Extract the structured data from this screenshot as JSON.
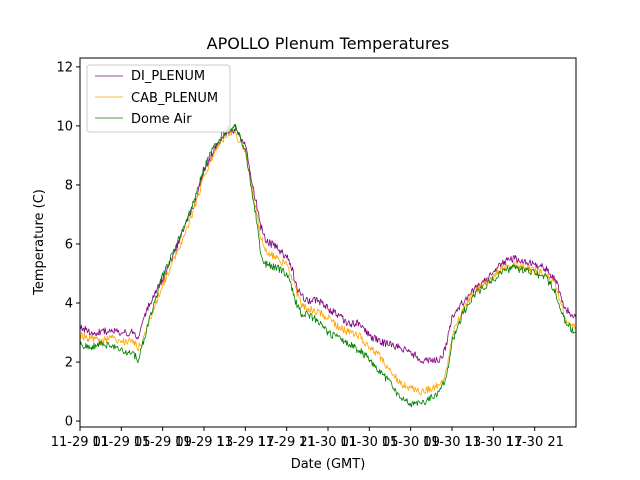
{
  "chart_data": {
    "type": "line",
    "title": "APOLLO Plenum Temperatures",
    "xlabel": "Date (GMT)",
    "ylabel": "Temperature (C)",
    "xlim": [
      0,
      48
    ],
    "ylim": [
      -0.2,
      12.3
    ],
    "grid": false,
    "legend_position": "top-left",
    "x_ticks": [
      {
        "x": 0,
        "label": "11-29 01"
      },
      {
        "x": 4,
        "label": "11-29 05"
      },
      {
        "x": 8,
        "label": "11-29 09"
      },
      {
        "x": 12,
        "label": "11-29 13"
      },
      {
        "x": 16,
        "label": "11-29 17"
      },
      {
        "x": 20,
        "label": "11-29 21"
      },
      {
        "x": 24,
        "label": "11-30 01"
      },
      {
        "x": 28,
        "label": "11-30 05"
      },
      {
        "x": 32,
        "label": "11-30 09"
      },
      {
        "x": 36,
        "label": "11-30 13"
      },
      {
        "x": 40,
        "label": "11-30 17"
      },
      {
        "x": 44,
        "label": "11-30 21"
      }
    ],
    "x_ticks_visible": [
      "11-29 01",
      "11-29 05",
      "11-29 09",
      "11-29 13",
      "11-29 17",
      "11-29 21",
      "11-30 01",
      "11-30 05",
      "11-30 09",
      "11-30 13",
      "11-30 17",
      "11-30 21"
    ],
    "y_ticks": [
      0,
      2,
      4,
      6,
      8,
      10,
      12
    ],
    "series": [
      {
        "name": "DI_PLENUM",
        "color": "#800080",
        "x": [
          0,
          1,
          2,
          3,
          4,
          5,
          5.6,
          6,
          7,
          8,
          9,
          10,
          11,
          12,
          13,
          14,
          15,
          16,
          17,
          17.5,
          18,
          19,
          19.5,
          20,
          20.5,
          21,
          21.5,
          22,
          23,
          24,
          25,
          26,
          27,
          28,
          29,
          30,
          31,
          32,
          33,
          34,
          35,
          35.5,
          36,
          37,
          38,
          39,
          40,
          41,
          42,
          43,
          44,
          45,
          46,
          47,
          48
        ],
        "y": [
          3.2,
          3.0,
          3.0,
          3.1,
          3.0,
          3.0,
          2.8,
          3.4,
          4.2,
          4.8,
          5.6,
          6.5,
          7.3,
          8.5,
          9.2,
          9.7,
          9.9,
          9.3,
          7.5,
          6.6,
          6.1,
          5.9,
          5.7,
          5.6,
          5.2,
          4.5,
          4.2,
          4.1,
          4.1,
          3.8,
          3.6,
          3.3,
          3.3,
          2.9,
          2.7,
          2.6,
          2.5,
          2.3,
          2.1,
          2.0,
          2.1,
          2.7,
          3.5,
          4.0,
          4.4,
          4.7,
          5.0,
          5.4,
          5.5,
          5.4,
          5.3,
          5.2,
          4.8,
          3.8,
          3.5
        ]
      },
      {
        "name": "CAB_PLENUM",
        "color": "#ffa500",
        "x": [
          0,
          1,
          2,
          3,
          4,
          5,
          5.6,
          6,
          7,
          8,
          9,
          10,
          11,
          12,
          13,
          14,
          15,
          16,
          17,
          17.5,
          18,
          19,
          19.5,
          20,
          20.5,
          21,
          21.5,
          22,
          23,
          24,
          25,
          26,
          27,
          28,
          29,
          30,
          31,
          32,
          33,
          34,
          35,
          35.5,
          36,
          37,
          38,
          39,
          40,
          41,
          42,
          43,
          44,
          45,
          46,
          47,
          48
        ],
        "y": [
          2.9,
          2.8,
          2.7,
          2.8,
          2.7,
          2.7,
          2.5,
          2.6,
          3.7,
          4.6,
          5.4,
          6.2,
          7.1,
          8.3,
          9.1,
          9.6,
          9.8,
          9.1,
          7.2,
          6.2,
          5.8,
          5.5,
          5.4,
          5.3,
          4.9,
          4.3,
          3.9,
          3.8,
          3.7,
          3.5,
          3.2,
          3.0,
          2.9,
          2.5,
          2.2,
          1.7,
          1.3,
          1.1,
          1.0,
          1.1,
          1.3,
          1.8,
          2.9,
          3.7,
          4.3,
          4.6,
          4.9,
          5.2,
          5.3,
          5.2,
          5.1,
          5.0,
          4.6,
          3.5,
          3.2
        ]
      },
      {
        "name": "Dome Air",
        "color": "#008000",
        "x": [
          0,
          1,
          2,
          3,
          4,
          5,
          5.6,
          6,
          7,
          8,
          9,
          10,
          11,
          12,
          13,
          14,
          15,
          16,
          17,
          17.5,
          18,
          19,
          19.5,
          20,
          20.5,
          21,
          21.5,
          22,
          23,
          24,
          25,
          26,
          27,
          28,
          29,
          30,
          31,
          32,
          33,
          34,
          35,
          35.5,
          36,
          37,
          38,
          39,
          40,
          41,
          42,
          43,
          44,
          45,
          46,
          47,
          48
        ],
        "y": [
          2.6,
          2.5,
          2.6,
          2.6,
          2.4,
          2.3,
          2.1,
          2.5,
          3.8,
          4.9,
          5.7,
          6.5,
          7.4,
          8.6,
          9.3,
          9.8,
          10.0,
          9.2,
          7.0,
          5.6,
          5.3,
          5.2,
          5.1,
          5.0,
          4.5,
          3.9,
          3.6,
          3.6,
          3.4,
          3.0,
          2.8,
          2.6,
          2.4,
          2.1,
          1.7,
          1.3,
          0.8,
          0.6,
          0.6,
          0.8,
          1.1,
          1.6,
          2.7,
          3.6,
          4.2,
          4.5,
          4.8,
          5.1,
          5.2,
          5.1,
          5.0,
          4.9,
          4.4,
          3.3,
          3.0
        ]
      }
    ]
  }
}
